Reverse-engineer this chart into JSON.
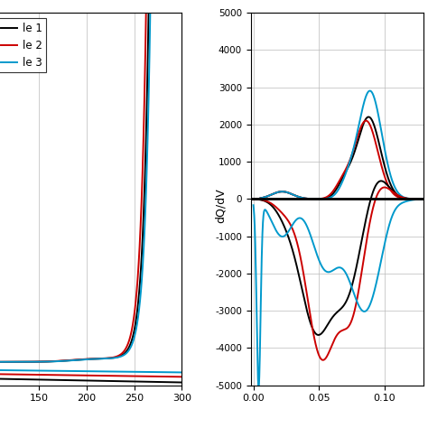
{
  "left_plot": {
    "xlim": [
      100,
      300
    ],
    "xticks": [
      150,
      200,
      250,
      300
    ],
    "grid_color": "#bbbbbb"
  },
  "right_plot": {
    "xlim": [
      -0.002,
      0.13
    ],
    "xticks": [
      0.0,
      0.05,
      0.1
    ],
    "ylim": [
      -5000,
      5000
    ],
    "yticks": [
      -5000,
      -4000,
      -3000,
      -2000,
      -1000,
      0,
      1000,
      2000,
      3000,
      4000,
      5000
    ],
    "ytick_labels": [
      "-5000",
      "-4000",
      "-3000",
      "-2000",
      "-1000",
      "0",
      "1000",
      "2000",
      "3000",
      "4000",
      "5000"
    ],
    "grid_color": "#bbbbbb"
  },
  "colors": {
    "cycle1": "black",
    "cycle2": "#cc0000",
    "cycle3": "#0099cc"
  },
  "legend_labels": [
    "le 1",
    "le 2",
    "le 3"
  ]
}
